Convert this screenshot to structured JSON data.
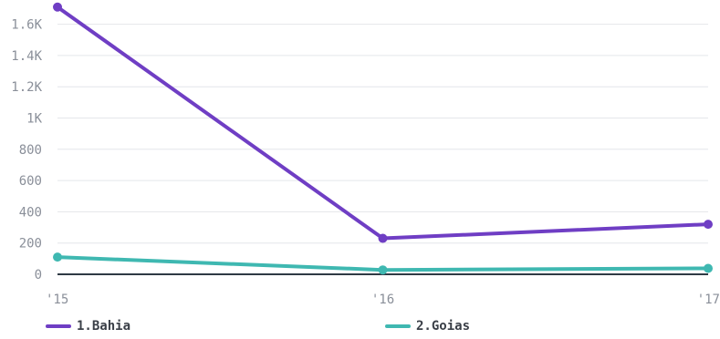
{
  "chart_data": {
    "type": "line",
    "categories": [
      "'15",
      "'16",
      "'17"
    ],
    "series": [
      {
        "name": "1.Bahia",
        "color": "#6f3ec4",
        "values": [
          1710,
          230,
          320
        ]
      },
      {
        "name": "2.Goias",
        "color": "#3fb8b1",
        "values": [
          110,
          28,
          38
        ]
      }
    ],
    "y_ticks": [
      {
        "value": 0,
        "label": "0"
      },
      {
        "value": 200,
        "label": "200"
      },
      {
        "value": 400,
        "label": "400"
      },
      {
        "value": 600,
        "label": "600"
      },
      {
        "value": 800,
        "label": "800"
      },
      {
        "value": 1000,
        "label": "1K"
      },
      {
        "value": 1200,
        "label": "1.2K"
      },
      {
        "value": 1400,
        "label": "1.4K"
      },
      {
        "value": 1600,
        "label": "1.6K"
      }
    ],
    "ylim": [
      0,
      1720
    ],
    "grid": true,
    "legend_position": "bottom",
    "title": "",
    "xlabel": "",
    "ylabel": ""
  }
}
